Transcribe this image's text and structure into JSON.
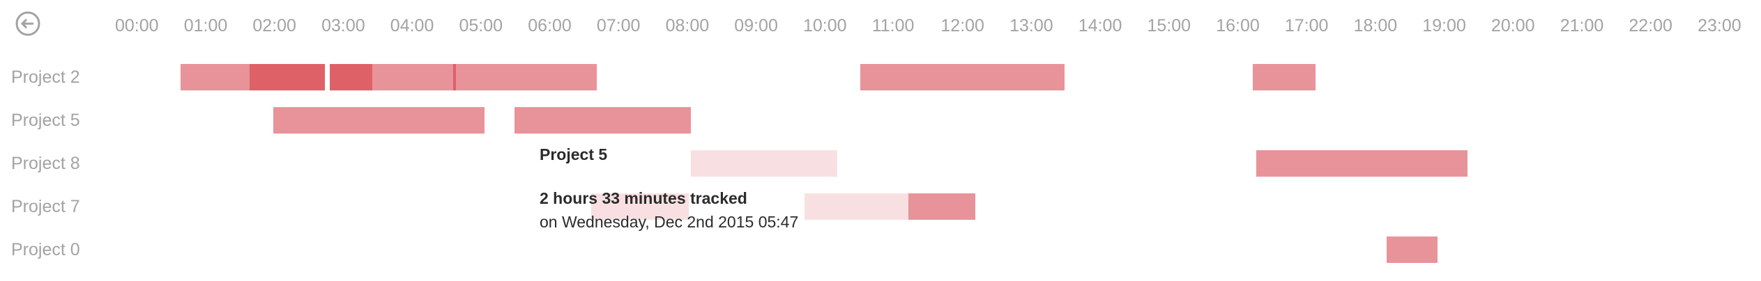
{
  "header": {
    "back_icon": "back-arrow-circle-icon",
    "hours": [
      "00:00",
      "01:00",
      "02:00",
      "03:00",
      "04:00",
      "05:00",
      "06:00",
      "07:00",
      "08:00",
      "09:00",
      "10:00",
      "11:00",
      "12:00",
      "13:00",
      "14:00",
      "15:00",
      "16:00",
      "17:00",
      "18:00",
      "19:00",
      "20:00",
      "21:00",
      "22:00",
      "23:00"
    ]
  },
  "colors": {
    "bar": "#e8939a",
    "bar_dark": "#df6168",
    "bar_faint": "#f8e0e2",
    "label": "#a3a3a3",
    "tooltip_text": "#2b2b2b"
  },
  "projects": [
    {
      "name": "Project 2",
      "segments": [
        {
          "start": "00:37",
          "end": "01:37",
          "tone": "normal"
        },
        {
          "start": "01:37",
          "end": "02:43",
          "tone": "dark"
        },
        {
          "start": "02:47",
          "end": "03:24",
          "tone": "dark"
        },
        {
          "start": "03:24",
          "end": "04:35",
          "tone": "normal"
        },
        {
          "start": "04:35",
          "end": "04:37",
          "tone": "dark"
        },
        {
          "start": "04:37",
          "end": "06:40",
          "tone": "normal"
        },
        {
          "start": "10:30",
          "end": "13:28",
          "tone": "normal"
        },
        {
          "start": "16:12",
          "end": "17:07",
          "tone": "normal"
        }
      ]
    },
    {
      "name": "Project 5",
      "segments": [
        {
          "start": "01:58",
          "end": "05:02",
          "tone": "normal"
        },
        {
          "start": "05:28",
          "end": "08:02",
          "tone": "normal"
        }
      ]
    },
    {
      "name": "Project 8",
      "segments": [
        {
          "start": "08:02",
          "end": "10:10",
          "tone": "faint"
        },
        {
          "start": "16:15",
          "end": "19:19",
          "tone": "normal"
        }
      ]
    },
    {
      "name": "Project 7",
      "segments": [
        {
          "start": "06:35",
          "end": "08:00",
          "tone": "faint"
        },
        {
          "start": "09:41",
          "end": "11:12",
          "tone": "faint"
        },
        {
          "start": "11:12",
          "end": "12:10",
          "tone": "normal"
        }
      ]
    },
    {
      "name": "Project 0",
      "segments": [
        {
          "start": "18:09",
          "end": "18:53",
          "tone": "normal"
        }
      ]
    }
  ],
  "tooltip": {
    "title": "Project 5",
    "amount": "2 hours 33 minutes tracked",
    "date": "on Wednesday, Dec 2nd 2015 05:47"
  }
}
